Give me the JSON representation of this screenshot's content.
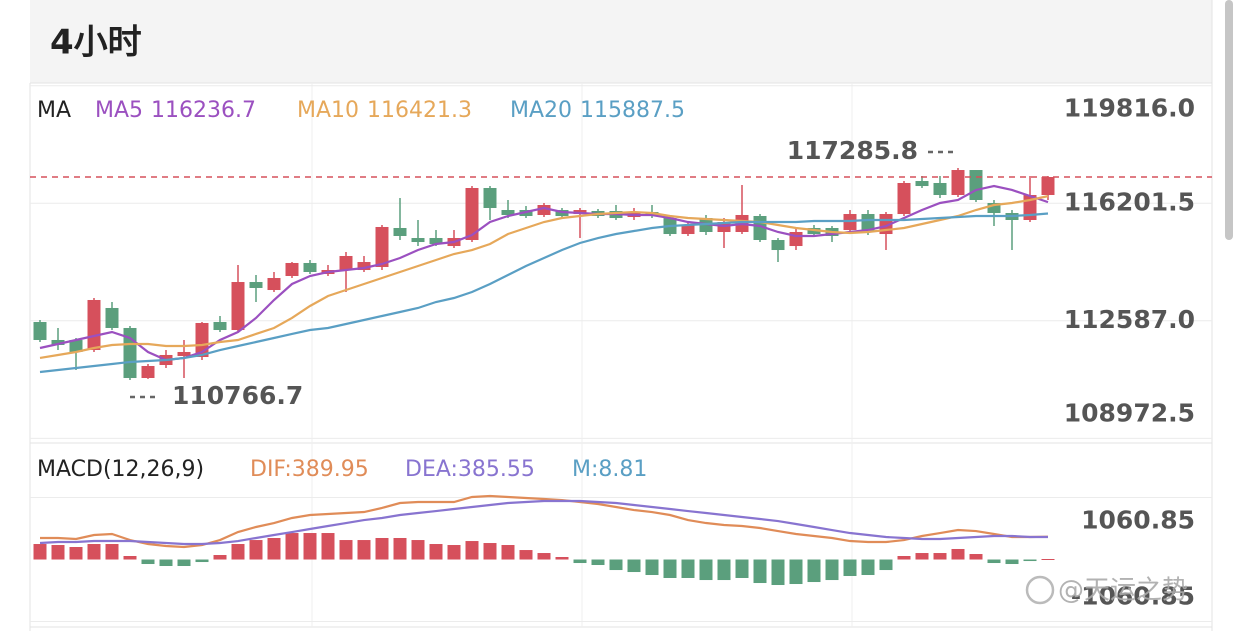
{
  "header": {
    "title": "4小时"
  },
  "watermark": "@天运之势",
  "chart_data": [
    {
      "type": "candlestick",
      "legend_title": "MA",
      "up_color": "#d6505c",
      "down_color": "#5b9f7d",
      "open": [
        112550,
        111997,
        111997,
        111689,
        112981,
        112366,
        110828,
        111228,
        111505,
        111474,
        112550,
        112304,
        113780,
        113534,
        113965,
        114365,
        114026,
        114149,
        114149,
        114242,
        115441,
        115133,
        115133,
        114887,
        115072,
        116671,
        115994,
        115994,
        115841,
        115994,
        115871,
        115964,
        115964,
        115779,
        115933,
        115748,
        115256,
        115748,
        115318,
        115318,
        115810,
        115072,
        114887,
        115441,
        115441,
        115379,
        115871,
        115256,
        115871,
        116886,
        116825,
        116456,
        117224,
        116210,
        115902,
        115687,
        116456
      ],
      "high": [
        112612,
        112366,
        112058,
        113288,
        113165,
        112427,
        111259,
        111689,
        111997,
        112550,
        112735,
        114303,
        113996,
        114088,
        114395,
        114457,
        114303,
        114703,
        114580,
        115533,
        116363,
        115687,
        115379,
        115379,
        116732,
        116732,
        116302,
        116117,
        116210,
        116056,
        116056,
        116025,
        116148,
        116056,
        116148,
        115841,
        115625,
        115841,
        115748,
        116763,
        115871,
        115133,
        115441,
        115533,
        115502,
        115994,
        115994,
        115933,
        116886,
        117040,
        117040,
        117285.8,
        117224,
        116302,
        115994,
        117040,
        117040
      ],
      "low": [
        111935,
        111689,
        111074,
        111628,
        112304,
        110766.7,
        110800,
        111136,
        110828,
        111382,
        112243,
        112243,
        113165,
        113473,
        113903,
        114026,
        113965,
        113473,
        114088,
        114149,
        115072,
        114887,
        114887,
        114826,
        115010,
        115687,
        115748,
        115748,
        115779,
        115748,
        115133,
        115748,
        115687,
        115687,
        115748,
        115195,
        115195,
        115226,
        114826,
        115256,
        115010,
        114395,
        114764,
        115195,
        115010,
        115318,
        115226,
        114764,
        115810,
        116671,
        116363,
        116394,
        116240,
        115502,
        114764,
        115625,
        116302
      ],
      "close": [
        111997,
        111843,
        111628,
        113227,
        112366,
        110828,
        111197,
        111536,
        111628,
        112520,
        112304,
        113780,
        113596,
        113903,
        114365,
        114088,
        114149,
        114580,
        114395,
        115472,
        115195,
        115010,
        114949,
        115133,
        116671,
        116056,
        115841,
        115810,
        116148,
        115810,
        115994,
        115810,
        115748,
        115902,
        115810,
        115256,
        115533,
        115318,
        115625,
        115841,
        115072,
        114764,
        115318,
        115256,
        115195,
        115871,
        115318,
        115871,
        116825,
        116732,
        116456,
        117224,
        116302,
        115902,
        115687,
        116456,
        117009
      ],
      "series": [
        {
          "name": "MA5",
          "color": "#9b50c0",
          "values": [
            111751,
            111874,
            111997,
            112120,
            112243,
            112058,
            111628,
            111382,
            111444,
            111628,
            111997,
            112243,
            112674,
            113227,
            113719,
            113965,
            114088,
            114149,
            114211,
            114334,
            114518,
            114764,
            114949,
            115010,
            115226,
            115625,
            115810,
            115933,
            116056,
            115933,
            115902,
            115871,
            115871,
            115841,
            115841,
            115748,
            115625,
            115564,
            115502,
            115564,
            115502,
            115318,
            115195,
            115195,
            115256,
            115318,
            115379,
            115502,
            115748,
            115994,
            116210,
            116302,
            116610,
            116732,
            116610,
            116425,
            116236.7
          ]
        },
        {
          "name": "MA10",
          "color": "#e6a85a",
          "values": [
            111444,
            111536,
            111628,
            111751,
            111843,
            111874,
            111874,
            111812,
            111812,
            111843,
            111935,
            111997,
            112182,
            112366,
            112674,
            113043,
            113350,
            113534,
            113719,
            113903,
            114088,
            114272,
            114457,
            114641,
            114764,
            114949,
            115256,
            115441,
            115625,
            115748,
            115810,
            115871,
            115902,
            115933,
            115902,
            115810,
            115748,
            115718,
            115687,
            115656,
            115625,
            115533,
            115441,
            115379,
            115318,
            115287,
            115318,
            115379,
            115441,
            115564,
            115687,
            115810,
            115994,
            116148,
            116210,
            116302,
            116421.3
          ]
        },
        {
          "name": "MA20",
          "color": "#5a9fc4",
          "values": [
            111013,
            111074,
            111136,
            111197,
            111259,
            111321,
            111352,
            111382,
            111444,
            111536,
            111689,
            111812,
            111935,
            112058,
            112182,
            112304,
            112366,
            112489,
            112612,
            112735,
            112858,
            112981,
            113165,
            113288,
            113473,
            113719,
            113996,
            114272,
            114518,
            114764,
            114980,
            115133,
            115256,
            115349,
            115441,
            115502,
            115533,
            115564,
            115595,
            115625,
            115625,
            115625,
            115625,
            115656,
            115656,
            115656,
            115687,
            115687,
            115687,
            115718,
            115748,
            115779,
            115810,
            115810,
            115810,
            115841,
            115887.5
          ]
        }
      ],
      "ylim": [
        108860,
        119900
      ],
      "yticks": [
        {
          "value": 119816,
          "label": "119816.0"
        },
        116201.5,
        {
          "value": 112587,
          "label": "112587.0"
        },
        108972.5
      ]
    },
    {
      "type": "macd",
      "title": "MACD(12,26,9)",
      "up_color": "#d6505c",
      "down_color": "#5b9f7d",
      "series": [
        {
          "name": "DIF:",
          "color": "#e08c58",
          "values": [
            368,
            368,
            351,
            419,
            436,
            333,
            265,
            231,
            214,
            248,
            333,
            470,
            556,
            624,
            710,
            761,
            778,
            795,
            812,
            881,
            966,
            983,
            983,
            983,
            1069,
            1086,
            1069,
            1052,
            1035,
            1017,
            983,
            949,
            898,
            846,
            812,
            761,
            675,
            624,
            590,
            573,
            539,
            487,
            436,
            402,
            368,
            316,
            299,
            299,
            333,
            402,
            453,
            504,
            487,
            436,
            385,
            385,
            389.95
          ]
        },
        {
          "name": "DEA:",
          "color": "#8874d0",
          "values": [
            282,
            299,
            299,
            316,
            316,
            316,
            299,
            282,
            265,
            265,
            282,
            316,
            368,
            419,
            470,
            522,
            573,
            624,
            675,
            710,
            761,
            795,
            829,
            864,
            898,
            932,
            966,
            983,
            1000,
            1000,
            1000,
            983,
            966,
            932,
            898,
            864,
            829,
            795,
            761,
            727,
            693,
            658,
            607,
            556,
            504,
            453,
            419,
            385,
            368,
            351,
            351,
            368,
            385,
            402,
            402,
            385,
            385.55
          ]
        },
        {
          "name": "M:",
          "color": "#5a9fc4",
          "values": [
            265,
            248,
            214,
            265,
            265,
            60,
            -77,
            -111,
            -111,
            -43,
            77,
            265,
            333,
            368,
            453,
            453,
            453,
            333,
            333,
            368,
            368,
            333,
            265,
            248,
            316,
            282,
            248,
            162,
            111,
            43,
            -60,
            -94,
            -180,
            -214,
            -265,
            -316,
            -316,
            -351,
            -351,
            -316,
            -402,
            -436,
            -419,
            -385,
            -351,
            -282,
            -265,
            -180,
            60,
            111,
            111,
            180,
            94,
            -60,
            -77,
            -26,
            8.81
          ]
        }
      ],
      "ylim": [
        -1154,
        1753
      ],
      "yticks": [
        1060.85,
        -1060.85
      ]
    }
  ]
}
